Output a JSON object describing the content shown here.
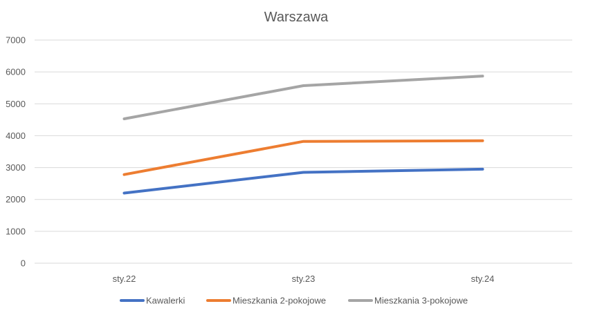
{
  "chart_data": {
    "type": "line",
    "title": "Warszawa",
    "xlabel": "",
    "ylabel": "",
    "categories": [
      "sty.22",
      "sty.23",
      "sty.24"
    ],
    "ylim": [
      0,
      7000
    ],
    "yticks": [
      0,
      1000,
      2000,
      3000,
      4000,
      5000,
      6000,
      7000
    ],
    "grid": true,
    "legend_position": "bottom",
    "series": [
      {
        "name": "Kawalerki",
        "color": "#4472c4",
        "values": [
          2200,
          2850,
          2950
        ]
      },
      {
        "name": "Mieszkania 2-pokojowe",
        "color": "#ed7d31",
        "values": [
          2780,
          3820,
          3840
        ]
      },
      {
        "name": "Mieszkania 3-pokojowe",
        "color": "#a5a5a5",
        "values": [
          4530,
          5570,
          5870
        ]
      }
    ]
  }
}
